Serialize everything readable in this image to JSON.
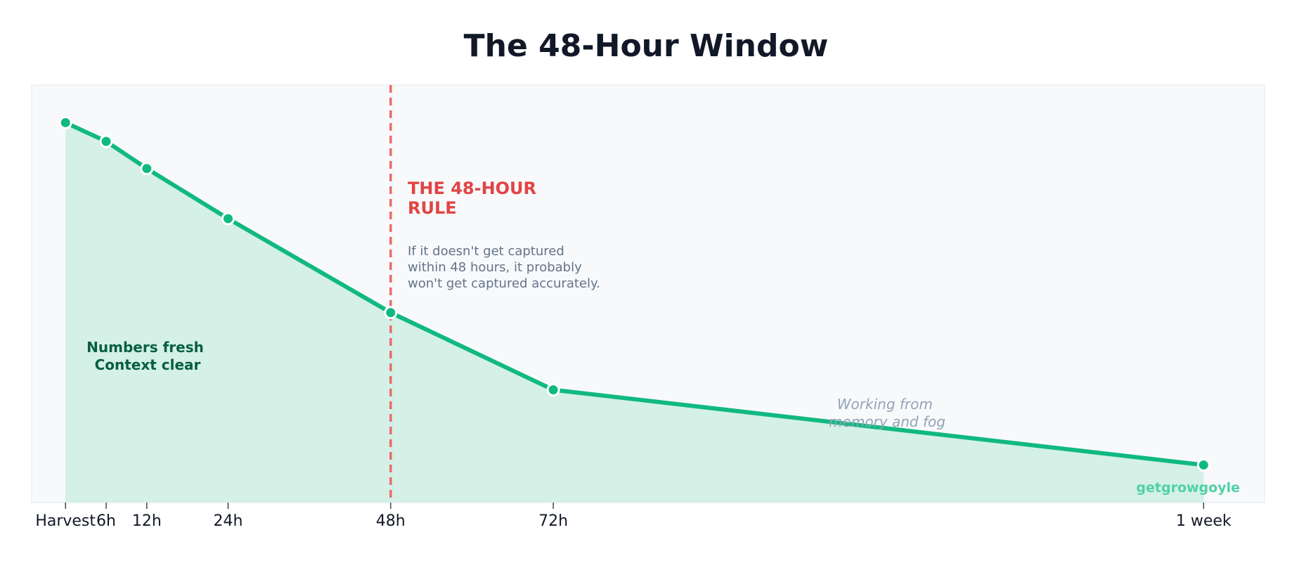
{
  "chart_data": {
    "type": "area",
    "title": "The 48-Hour Window",
    "xlabel": "",
    "ylabel": "",
    "x_ticks": [
      "Harvest",
      "6h",
      "12h",
      "24h",
      "48h",
      "72h",
      "1 week"
    ],
    "x_hours": [
      0,
      6,
      12,
      24,
      48,
      72,
      168
    ],
    "xlim": [
      -5,
      177
    ],
    "ylim": [
      0,
      100
    ],
    "grid": false,
    "series": [
      {
        "points": [
          {
            "x": 0,
            "y": 91
          },
          {
            "x": 6,
            "y": 86.5
          },
          {
            "x": 12,
            "y": 80
          },
          {
            "x": 24,
            "y": 68
          },
          {
            "x": 48,
            "y": 45.5
          },
          {
            "x": 72,
            "y": 27
          },
          {
            "x": 168,
            "y": 9
          }
        ]
      }
    ],
    "marker_line": {
      "x": 48
    },
    "annotations": {
      "rule_title_lines": [
        "THE 48-HOUR",
        "RULE"
      ],
      "rule_body_lines": [
        "If it doesn't get captured",
        "within 48 hours, it probably",
        "won't get captured accurately."
      ],
      "fresh_lines": [
        "Numbers fresh",
        "Context clear"
      ],
      "fog_lines": [
        "Working from",
        "memory and fog"
      ],
      "brand": "getgrowgoyle"
    },
    "colors": {
      "line": "#10b981",
      "fill": "#d4f0e7",
      "plot_bg": "#f7f9fb",
      "rule": "#ec6b6b",
      "rule_text": "#e24444"
    }
  }
}
